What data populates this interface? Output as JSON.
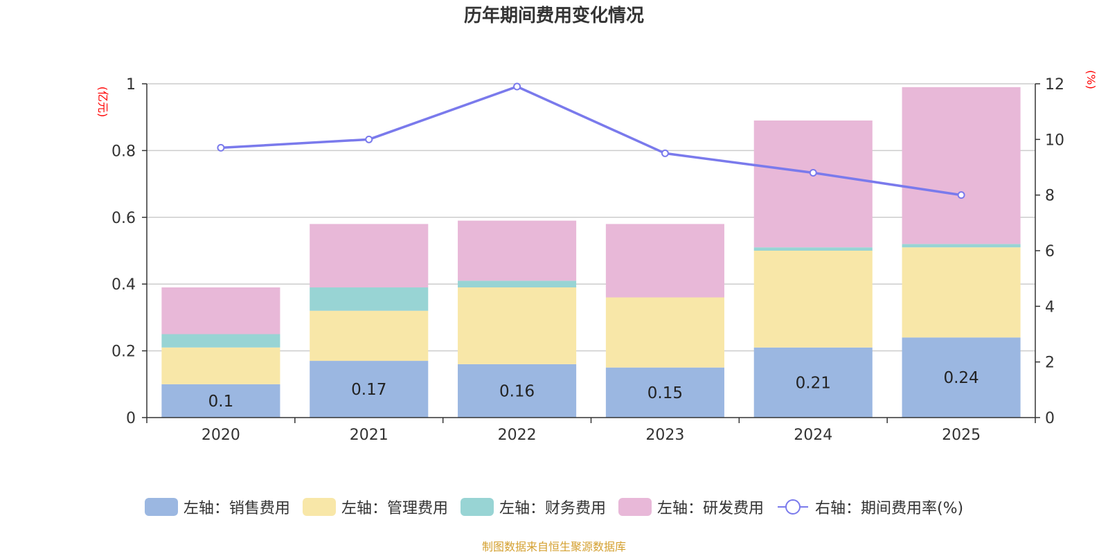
{
  "chart_data": {
    "type": "bar",
    "title": "历年期间费用变化情况",
    "source": "制图数据来自恒生聚源数据库",
    "categories": [
      "2020",
      "2021",
      "2022",
      "2023",
      "2024",
      "2025"
    ],
    "y_left_label": "(亿元)",
    "y_right_label": "(%)",
    "y_left_range": [
      0,
      1
    ],
    "y_left_ticks": [
      "0",
      "0.2",
      "0.4",
      "0.6",
      "0.8",
      "1"
    ],
    "y_right_range": [
      0,
      12
    ],
    "y_right_ticks": [
      "0",
      "2",
      "4",
      "6",
      "8",
      "10",
      "12"
    ],
    "grid": true,
    "legend_position": "bottom",
    "series": [
      {
        "name": "左轴：销售费用",
        "axis": "left",
        "type": "bar",
        "color": "#9bb7e1",
        "values": [
          0.1,
          0.17,
          0.16,
          0.15,
          0.21,
          0.24
        ],
        "labels": [
          "0.1",
          "0.17",
          "0.16",
          "0.15",
          "0.21",
          "0.24"
        ]
      },
      {
        "name": "左轴：管理费用",
        "axis": "left",
        "type": "bar",
        "color": "#f8e7a8",
        "values": [
          0.11,
          0.15,
          0.23,
          0.21,
          0.29,
          0.27
        ]
      },
      {
        "name": "左轴：财务费用",
        "axis": "left",
        "type": "bar",
        "color": "#98d4d4",
        "values": [
          0.04,
          0.07,
          0.02,
          0.0,
          0.01,
          0.01
        ]
      },
      {
        "name": "左轴：研发费用",
        "axis": "left",
        "type": "bar",
        "color": "#e8b8d8",
        "values": [
          0.14,
          0.19,
          0.18,
          0.22,
          0.38,
          0.47
        ]
      },
      {
        "name": "右轴：期间费用率(%)",
        "axis": "right",
        "type": "line",
        "color": "#7a7aec",
        "values": [
          9.7,
          10.0,
          11.9,
          9.5,
          8.8,
          8.0
        ]
      }
    ]
  }
}
